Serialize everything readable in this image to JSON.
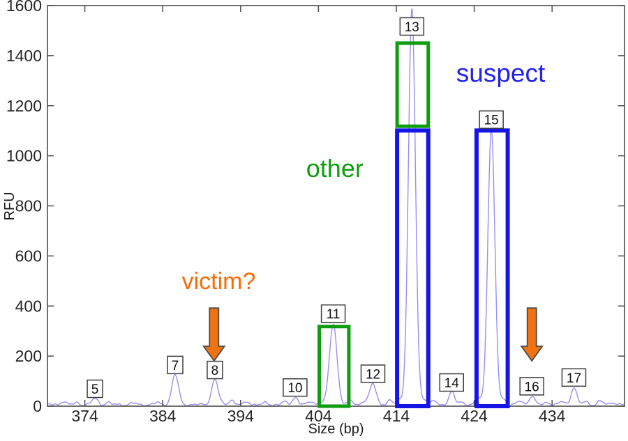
{
  "figure": {
    "kind": "STR electropherogram"
  },
  "chart_data": {
    "type": "line",
    "title": "",
    "xlabel": "Size (bp)",
    "ylabel": "RFU",
    "xlim": [
      369.2,
      443.3
    ],
    "ylim": [
      0,
      1600
    ],
    "x_ticks": [
      374,
      384,
      394,
      404,
      414,
      424,
      434
    ],
    "y_ticks": [
      0,
      200,
      400,
      600,
      800,
      1000,
      1200,
      1400,
      1600
    ],
    "grid": false,
    "legend": "none",
    "trace_color": "#998ef0",
    "axis_color": "#4d4d4d",
    "tick_label_color": "#262626",
    "peak_label_border": "#3c3c3c",
    "arrow_color": "#f07310",
    "arrow_outline": "#4a4a4a",
    "peaks": [
      {
        "label": "5",
        "size_bp": 375.3,
        "rfu": 25
      },
      {
        "label": "7",
        "size_bp": 385.6,
        "rfu": 120
      },
      {
        "label": "8",
        "size_bp": 390.7,
        "rfu": 100
      },
      {
        "label": "10",
        "size_bp": 401.0,
        "rfu": 30
      },
      {
        "label": "11",
        "size_bp": 405.9,
        "rfu": 325
      },
      {
        "label": "12",
        "size_bp": 411.0,
        "rfu": 85
      },
      {
        "label": "13",
        "size_bp": 416.0,
        "rfu": 1580
      },
      {
        "label": "14",
        "size_bp": 421.1,
        "rfu": 50
      },
      {
        "label": "15",
        "size_bp": 426.2,
        "rfu": 1100
      },
      {
        "label": "16",
        "size_bp": 431.4,
        "rfu": 35
      },
      {
        "label": "17",
        "size_bp": 436.8,
        "rfu": 70
      }
    ],
    "minor_bumps": [
      [
        371.2,
        14
      ],
      [
        373.0,
        8
      ],
      [
        376.9,
        9
      ],
      [
        380.2,
        6
      ],
      [
        383.3,
        8
      ],
      [
        392.8,
        20
      ],
      [
        394.9,
        12
      ],
      [
        397.3,
        7
      ],
      [
        399.6,
        10
      ],
      [
        403.1,
        14
      ],
      [
        404.3,
        10
      ],
      [
        408.2,
        16
      ],
      [
        409.8,
        12
      ],
      [
        413.2,
        14
      ],
      [
        414.4,
        20
      ],
      [
        417.6,
        22
      ],
      [
        418.9,
        14
      ],
      [
        422.3,
        12
      ],
      [
        424.6,
        25
      ],
      [
        427.8,
        22
      ],
      [
        429.9,
        14
      ],
      [
        433.4,
        10
      ],
      [
        435.3,
        12
      ],
      [
        438.3,
        12
      ],
      [
        440.2,
        14
      ],
      [
        441.8,
        10
      ]
    ],
    "boxes": [
      {
        "id": "other-box-peak-11",
        "group": "other",
        "color": "#0f9d0f",
        "x1_bp": 404.1,
        "x2_bp": 407.9,
        "rfu1": 0,
        "rfu2": 318
      },
      {
        "id": "other-box-peak-13-top",
        "group": "other",
        "color": "#0f9d0f",
        "x1_bp": 414.1,
        "x2_bp": 418.1,
        "rfu1": 1118,
        "rfu2": 1450
      },
      {
        "id": "suspect-box-peak-13",
        "group": "suspect",
        "color": "#1515e6",
        "x1_bp": 414.1,
        "x2_bp": 418.1,
        "rfu1": 0,
        "rfu2": 1101
      },
      {
        "id": "suspect-box-peak-15",
        "group": "suspect",
        "color": "#1515e6",
        "x1_bp": 424.3,
        "x2_bp": 428.3,
        "rfu1": 0,
        "rfu2": 1101
      }
    ],
    "arrows": [
      {
        "id": "victim-arrow-peak-8",
        "x_bp": 390.6,
        "tail_rfu": 392,
        "tip_rfu": 181
      },
      {
        "id": "victim-arrow-peak-16",
        "x_bp": 431.4,
        "tail_rfu": 392,
        "tip_rfu": 181
      }
    ],
    "annotations": [
      {
        "id": "victim",
        "text": "victim?",
        "color": "#fa6a05",
        "x_bp": 391.2,
        "y_rfu": 498
      },
      {
        "id": "other",
        "text": "other",
        "color": "#0f9d0f",
        "x_bp": 406.1,
        "y_rfu": 949
      },
      {
        "id": "suspect",
        "text": "suspect",
        "color": "#2222ee",
        "x_bp": 427.4,
        "y_rfu": 1330
      }
    ]
  }
}
